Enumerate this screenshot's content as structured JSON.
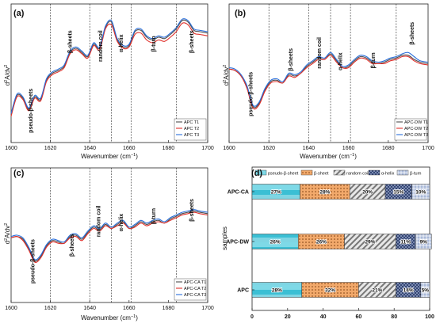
{
  "chart_data": [
    {
      "type": "line",
      "panel_label": "(a)",
      "ylabel_main": "d",
      "ylabel_sup1": "2",
      "ylabel_mid": "A/dv",
      "ylabel_sup2": "2",
      "xlabel": "Wavenumber (cm",
      "xlabel_sup": "−1",
      "xlabel_end": ")",
      "xlim": [
        1600,
        1700
      ],
      "xticks": [
        "1600",
        "1620",
        "1640",
        "1660",
        "1680",
        "1700"
      ],
      "vlines": [
        1620,
        1640,
        1651,
        1661,
        1684
      ],
      "regions": [
        {
          "label": "pseudo-β-sheets",
          "x": 1610,
          "level": 0.61
        },
        {
          "label": "β-sheets",
          "x": 1630,
          "level": 0.19
        },
        {
          "label": "random coil",
          "x": 1645.5,
          "level": 0.19
        },
        {
          "label": "α-helix",
          "x": 1656,
          "level": 0.22
        },
        {
          "label": "β-turn",
          "x": 1672.5,
          "level": 0.23
        },
        {
          "label": "β-sheets",
          "x": 1692,
          "level": 0.19
        }
      ],
      "legend_position": "bottom-right",
      "series": [
        {
          "name": "APC T1",
          "color": "#4d4d4d",
          "x": [
            1600,
            1603,
            1606,
            1609,
            1612,
            1615,
            1618,
            1621,
            1624,
            1627,
            1630,
            1633,
            1636,
            1639,
            1642,
            1645,
            1648,
            1651,
            1654,
            1657,
            1660,
            1663,
            1666,
            1669,
            1672,
            1675,
            1678,
            1681,
            1684,
            1687,
            1690,
            1693,
            1696,
            1700
          ],
          "y": [
            0.8,
            0.66,
            0.68,
            0.76,
            0.67,
            0.69,
            0.55,
            0.5,
            0.48,
            0.45,
            0.35,
            0.32,
            0.35,
            0.38,
            0.29,
            0.32,
            0.17,
            0.13,
            0.26,
            0.31,
            0.3,
            0.2,
            0.19,
            0.24,
            0.26,
            0.24,
            0.25,
            0.22,
            0.18,
            0.12,
            0.13,
            0.19,
            0.2,
            0.21
          ]
        },
        {
          "name": "APC T2",
          "color": "#e0302b",
          "x": [
            1600,
            1603,
            1606,
            1609,
            1612,
            1615,
            1618,
            1621,
            1624,
            1627,
            1630,
            1633,
            1636,
            1639,
            1642,
            1645,
            1648,
            1651,
            1654,
            1657,
            1660,
            1663,
            1666,
            1669,
            1672,
            1675,
            1678,
            1681,
            1684,
            1687,
            1690,
            1693,
            1696,
            1700
          ],
          "y": [
            0.81,
            0.67,
            0.69,
            0.77,
            0.68,
            0.7,
            0.56,
            0.51,
            0.49,
            0.46,
            0.36,
            0.33,
            0.36,
            0.39,
            0.3,
            0.33,
            0.18,
            0.15,
            0.27,
            0.32,
            0.31,
            0.22,
            0.21,
            0.26,
            0.28,
            0.26,
            0.27,
            0.24,
            0.2,
            0.14,
            0.15,
            0.21,
            0.22,
            0.23
          ]
        },
        {
          "name": "APC T3",
          "color": "#2a6fdb",
          "x": [
            1600,
            1603,
            1606,
            1609,
            1612,
            1615,
            1618,
            1621,
            1624,
            1627,
            1630,
            1633,
            1636,
            1639,
            1642,
            1645,
            1648,
            1651,
            1654,
            1657,
            1660,
            1663,
            1666,
            1669,
            1672,
            1675,
            1678,
            1681,
            1684,
            1687,
            1690,
            1693,
            1696,
            1700
          ],
          "y": [
            0.79,
            0.65,
            0.67,
            0.75,
            0.66,
            0.68,
            0.54,
            0.49,
            0.47,
            0.44,
            0.34,
            0.31,
            0.34,
            0.37,
            0.28,
            0.31,
            0.16,
            0.12,
            0.25,
            0.3,
            0.29,
            0.19,
            0.18,
            0.23,
            0.25,
            0.23,
            0.24,
            0.21,
            0.17,
            0.11,
            0.12,
            0.18,
            0.19,
            0.2
          ]
        }
      ]
    },
    {
      "type": "line",
      "panel_label": "(b)",
      "ylabel_main": "d",
      "ylabel_sup1": "2",
      "ylabel_mid": "A/dv",
      "ylabel_sup2": "2",
      "xlabel": "Wavenumber (cm",
      "xlabel_sup": "−1",
      "xlabel_end": ")",
      "xlim": [
        1600,
        1700
      ],
      "xticks": [
        "1600",
        "1620",
        "1640",
        "1660",
        "1680",
        "1700"
      ],
      "vlines": [
        1620,
        1640,
        1651,
        1661,
        1684
      ],
      "regions": [
        {
          "label": "pseudo-β-sheets",
          "x": 1611,
          "level": 0.49
        },
        {
          "label": "β-sheets",
          "x": 1631,
          "level": 0.32
        },
        {
          "label": "random coil",
          "x": 1645.5,
          "level": 0.24
        },
        {
          "label": "α-helix",
          "x": 1656,
          "level": 0.35
        },
        {
          "label": "β-turn",
          "x": 1672.5,
          "level": 0.35
        },
        {
          "label": "β-sheets",
          "x": 1692,
          "level": 0.13
        }
      ],
      "legend_position": "bottom-right",
      "series": [
        {
          "name": "APC-DW T1",
          "color": "#4d4d4d",
          "x": [
            1600,
            1603,
            1606,
            1609,
            1612,
            1615,
            1618,
            1621,
            1624,
            1627,
            1630,
            1633,
            1636,
            1639,
            1642,
            1645,
            1648,
            1651,
            1654,
            1657,
            1660,
            1663,
            1666,
            1669,
            1672,
            1675,
            1678,
            1681,
            1684,
            1687,
            1690,
            1693,
            1696,
            1700
          ],
          "y": [
            0.47,
            0.48,
            0.52,
            0.6,
            0.74,
            0.72,
            0.62,
            0.56,
            0.55,
            0.57,
            0.51,
            0.52,
            0.5,
            0.45,
            0.42,
            0.39,
            0.4,
            0.36,
            0.41,
            0.46,
            0.45,
            0.41,
            0.38,
            0.39,
            0.42,
            0.43,
            0.42,
            0.4,
            0.39,
            0.37,
            0.37,
            0.4,
            0.42,
            0.43
          ]
        },
        {
          "name": "APC-DW T2",
          "color": "#e0302b",
          "x": [
            1600,
            1603,
            1606,
            1609,
            1612,
            1615,
            1618,
            1621,
            1624,
            1627,
            1630,
            1633,
            1636,
            1639,
            1642,
            1645,
            1648,
            1651,
            1654,
            1657,
            1660,
            1663,
            1666,
            1669,
            1672,
            1675,
            1678,
            1681,
            1684,
            1687,
            1690,
            1693,
            1696,
            1700
          ],
          "y": [
            0.47,
            0.48,
            0.52,
            0.61,
            0.75,
            0.73,
            0.63,
            0.57,
            0.56,
            0.57,
            0.52,
            0.53,
            0.5,
            0.46,
            0.43,
            0.4,
            0.4,
            0.37,
            0.42,
            0.46,
            0.46,
            0.42,
            0.39,
            0.4,
            0.43,
            0.43,
            0.43,
            0.41,
            0.4,
            0.38,
            0.38,
            0.41,
            0.43,
            0.44
          ]
        },
        {
          "name": "APC-DW T3",
          "color": "#2a6fdb",
          "x": [
            1600,
            1603,
            1606,
            1609,
            1612,
            1615,
            1618,
            1621,
            1624,
            1627,
            1630,
            1633,
            1636,
            1639,
            1642,
            1645,
            1648,
            1651,
            1654,
            1657,
            1660,
            1663,
            1666,
            1669,
            1672,
            1675,
            1678,
            1681,
            1684,
            1687,
            1690,
            1693,
            1696,
            1700
          ],
          "y": [
            0.46,
            0.47,
            0.51,
            0.59,
            0.73,
            0.71,
            0.61,
            0.55,
            0.54,
            0.56,
            0.5,
            0.51,
            0.49,
            0.44,
            0.41,
            0.38,
            0.39,
            0.35,
            0.4,
            0.45,
            0.44,
            0.4,
            0.37,
            0.38,
            0.41,
            0.42,
            0.41,
            0.39,
            0.38,
            0.36,
            0.35,
            0.38,
            0.41,
            0.42
          ]
        }
      ]
    },
    {
      "type": "line",
      "panel_label": "(c)",
      "ylabel_main": "d",
      "ylabel_sup1": "2",
      "ylabel_mid": "A/dv",
      "ylabel_sup2": "2",
      "xlabel": "Wavenumber (cm",
      "xlabel_sup": "−1",
      "xlabel_end": ")",
      "xlim": [
        1600,
        1700
      ],
      "xticks": [
        "1600",
        "1620",
        "1640",
        "1660",
        "1680",
        "1700"
      ],
      "vlines": [
        1620,
        1640,
        1651,
        1661,
        1684
      ],
      "regions": [
        {
          "label": "pseudo-β-sheets",
          "x": 1611,
          "level": 0.53
        },
        {
          "label": "β-sheets",
          "x": 1631,
          "level": 0.49
        },
        {
          "label": "random coil",
          "x": 1644.5,
          "level": 0.28
        },
        {
          "label": "α-helix",
          "x": 1656,
          "level": 0.34
        },
        {
          "label": "β-turn",
          "x": 1672.5,
          "level": 0.3
        },
        {
          "label": "β-sheets",
          "x": 1692,
          "level": 0.23
        }
      ],
      "legend_position": "bottom-right",
      "series": [
        {
          "name": "APC-CA T1",
          "color": "#4d4d4d",
          "x": [
            1600,
            1603,
            1606,
            1609,
            1612,
            1615,
            1618,
            1621,
            1624,
            1627,
            1630,
            1633,
            1636,
            1639,
            1642,
            1645,
            1648,
            1651,
            1654,
            1657,
            1660,
            1663,
            1666,
            1669,
            1672,
            1675,
            1678,
            1681,
            1684,
            1687,
            1690,
            1693,
            1696,
            1700
          ],
          "y": [
            0.52,
            0.51,
            0.53,
            0.6,
            0.69,
            0.66,
            0.58,
            0.54,
            0.55,
            0.56,
            0.51,
            0.5,
            0.53,
            0.48,
            0.44,
            0.46,
            0.42,
            0.45,
            0.42,
            0.4,
            0.45,
            0.43,
            0.4,
            0.42,
            0.4,
            0.39,
            0.41,
            0.38,
            0.36,
            0.34,
            0.33,
            0.32,
            0.33,
            0.34
          ]
        },
        {
          "name": "APC-CA T2",
          "color": "#e0302b",
          "x": [
            1600,
            1603,
            1606,
            1609,
            1612,
            1615,
            1618,
            1621,
            1624,
            1627,
            1630,
            1633,
            1636,
            1639,
            1642,
            1645,
            1648,
            1651,
            1654,
            1657,
            1660,
            1663,
            1666,
            1669,
            1672,
            1675,
            1678,
            1681,
            1684,
            1687,
            1690,
            1693,
            1696,
            1700
          ],
          "y": [
            0.52,
            0.51,
            0.54,
            0.61,
            0.7,
            0.67,
            0.59,
            0.55,
            0.56,
            0.56,
            0.52,
            0.51,
            0.54,
            0.49,
            0.45,
            0.47,
            0.43,
            0.45,
            0.43,
            0.41,
            0.45,
            0.44,
            0.41,
            0.43,
            0.41,
            0.4,
            0.41,
            0.39,
            0.37,
            0.35,
            0.34,
            0.33,
            0.34,
            0.35
          ]
        },
        {
          "name": "APC-CA T3",
          "color": "#2a6fdb",
          "x": [
            1600,
            1603,
            1606,
            1609,
            1612,
            1615,
            1618,
            1621,
            1624,
            1627,
            1630,
            1633,
            1636,
            1639,
            1642,
            1645,
            1648,
            1651,
            1654,
            1657,
            1660,
            1663,
            1666,
            1669,
            1672,
            1675,
            1678,
            1681,
            1684,
            1687,
            1690,
            1693,
            1696,
            1700
          ],
          "y": [
            0.51,
            0.5,
            0.52,
            0.59,
            0.68,
            0.65,
            0.57,
            0.53,
            0.54,
            0.55,
            0.5,
            0.49,
            0.52,
            0.47,
            0.43,
            0.45,
            0.41,
            0.44,
            0.41,
            0.39,
            0.44,
            0.42,
            0.39,
            0.41,
            0.39,
            0.38,
            0.4,
            0.37,
            0.35,
            0.33,
            0.32,
            0.31,
            0.32,
            0.33
          ]
        }
      ]
    },
    {
      "type": "bar",
      "stacked": true,
      "orientation": "horizontal",
      "panel_label": "(d)",
      "ylabel": "samples",
      "xlabel": "",
      "xlim": [
        0,
        100
      ],
      "xticks": [
        "0",
        "20",
        "40",
        "60",
        "80",
        "100"
      ],
      "categories": [
        "APC-CA",
        "APC-DW",
        "APC"
      ],
      "legend_position": "top",
      "series": [
        {
          "name": "pseudo-β-sheet",
          "color": "#3bbfd4",
          "pattern": "pseudo",
          "values": [
            27,
            26,
            28
          ],
          "labels": [
            "27%",
            "26%",
            "28%"
          ]
        },
        {
          "name": "β-sheet",
          "color": "#f2a96b",
          "pattern": "dots",
          "values": [
            28,
            26,
            32
          ],
          "labels": [
            "28%",
            "26%",
            "32%"
          ]
        },
        {
          "name": "random coil",
          "color": "#e8e8e8",
          "pattern": "diag",
          "values": [
            20,
            29,
            21
          ],
          "labels": [
            "20%",
            "29%",
            "21%"
          ]
        },
        {
          "name": "α-helix",
          "color": "#2b3d6b",
          "pattern": "cross",
          "values": [
            15,
            11,
            14
          ],
          "labels": [
            "15%",
            "11%",
            "14%"
          ]
        },
        {
          "name": "β-turn",
          "color": "#a8b8d8",
          "pattern": "hatch",
          "values": [
            10,
            9,
            5
          ],
          "labels": [
            "10%",
            "9%",
            "5%"
          ]
        }
      ]
    }
  ]
}
